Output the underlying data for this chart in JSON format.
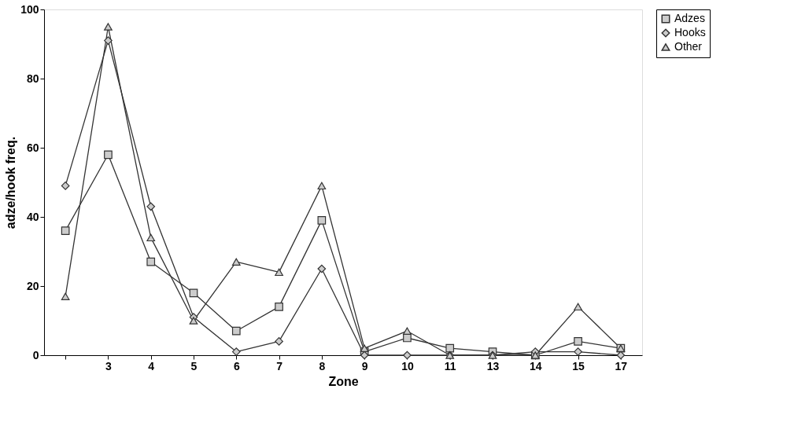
{
  "chart_data": {
    "type": "line",
    "xlabel": "Zone",
    "ylabel": "adze/hook freq.",
    "categories": [
      null,
      "3",
      "4",
      "5",
      "6",
      "7",
      "8",
      "9",
      "10",
      "11",
      "13",
      "14",
      "15",
      "17"
    ],
    "series": [
      {
        "name": "Adzes",
        "color": "#333333",
        "marker": "square",
        "values": [
          36,
          58,
          27,
          18,
          7,
          14,
          39,
          1,
          5,
          2,
          1,
          0,
          4,
          2
        ]
      },
      {
        "name": "Hooks",
        "color": "#333333",
        "marker": "diamond",
        "values": [
          49,
          91,
          43,
          11,
          1,
          4,
          25,
          0,
          0,
          0,
          0,
          1,
          1,
          0
        ]
      },
      {
        "name": "Other",
        "color": "#333333",
        "marker": "triangle",
        "values": [
          17,
          95,
          34,
          10,
          27,
          24,
          49,
          2,
          7,
          0,
          0,
          0,
          14,
          2
        ]
      }
    ],
    "ylim": [
      0,
      100
    ],
    "yticks": [
      0,
      20,
      40,
      60,
      80,
      100
    ],
    "grid": false,
    "legend": "right",
    "line_style": "solid"
  }
}
